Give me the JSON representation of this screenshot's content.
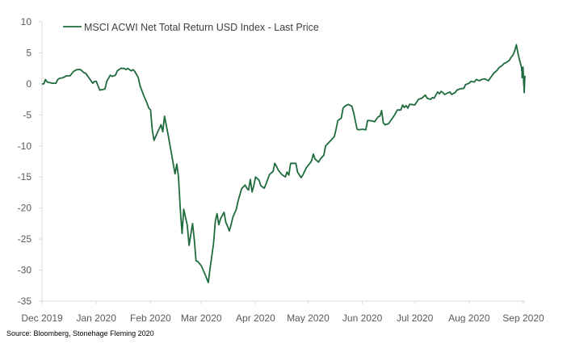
{
  "chart_data": {
    "type": "line",
    "title": "",
    "xlabel": "",
    "ylabel": "",
    "ylim": [
      -35,
      10
    ],
    "yticks": [
      10,
      5,
      0,
      -5,
      -10,
      -15,
      -20,
      -25,
      -30,
      -35
    ],
    "xlim": [
      "2019-12-01",
      "2020-09-01"
    ],
    "xticks": [
      {
        "date": "2019-12-01",
        "label": "Dec 2019"
      },
      {
        "date": "2020-01-01",
        "label": "Jan 2020"
      },
      {
        "date": "2020-02-01",
        "label": "Feb 2020"
      },
      {
        "date": "2020-03-01",
        "label": "Mar 2020"
      },
      {
        "date": "2020-04-01",
        "label": "Apr 2020"
      },
      {
        "date": "2020-05-01",
        "label": "May 2020"
      },
      {
        "date": "2020-06-01",
        "label": "Jun 2020"
      },
      {
        "date": "2020-07-01",
        "label": "Jul 2020"
      },
      {
        "date": "2020-08-01",
        "label": "Aug 2020"
      },
      {
        "date": "2020-09-01",
        "label": "Sep 2020"
      }
    ],
    "grid": false,
    "legend": {
      "position": "top-left",
      "entries": [
        "MSCI ACWI Net Total Return USD Index - Last Price"
      ]
    },
    "series": [
      {
        "name": "MSCI ACWI Net Total Return USD Index - Last Price",
        "color": "#1e6b3c",
        "points": [
          [
            "2019-12-01",
            0.0
          ],
          [
            "2019-12-02",
            0.0
          ],
          [
            "2019-12-03",
            0.7
          ],
          [
            "2019-12-04",
            0.3
          ],
          [
            "2019-12-07",
            0.1
          ],
          [
            "2019-12-09",
            0.1
          ],
          [
            "2019-12-10",
            0.7
          ],
          [
            "2019-12-11",
            0.9
          ],
          [
            "2019-12-13",
            1.0
          ],
          [
            "2019-12-15",
            1.3
          ],
          [
            "2019-12-17",
            1.3
          ],
          [
            "2019-12-19",
            2.0
          ],
          [
            "2019-12-21",
            2.3
          ],
          [
            "2019-12-23",
            2.3
          ],
          [
            "2019-12-25",
            1.8
          ],
          [
            "2019-12-26",
            1.7
          ],
          [
            "2019-12-28",
            0.9
          ],
          [
            "2019-12-30",
            0.1
          ],
          [
            "2019-12-31",
            0.4
          ],
          [
            "2020-01-01",
            0.4
          ],
          [
            "2020-01-02",
            -0.3
          ],
          [
            "2020-01-03",
            -1.0
          ],
          [
            "2020-01-05",
            -0.9
          ],
          [
            "2020-01-06",
            -0.8
          ],
          [
            "2020-01-07",
            0.4
          ],
          [
            "2020-01-09",
            1.4
          ],
          [
            "2020-01-10",
            1.2
          ],
          [
            "2020-01-12",
            1.4
          ],
          [
            "2020-01-13",
            2.1
          ],
          [
            "2020-01-15",
            2.5
          ],
          [
            "2020-01-17",
            2.5
          ],
          [
            "2020-01-18",
            2.3
          ],
          [
            "2020-01-19",
            2.5
          ],
          [
            "2020-01-21",
            2.1
          ],
          [
            "2020-01-22",
            2.3
          ],
          [
            "2020-01-23",
            2.0
          ],
          [
            "2020-01-25",
            1.0
          ],
          [
            "2020-01-26",
            -0.3
          ],
          [
            "2020-01-28",
            -1.8
          ],
          [
            "2020-01-30",
            -3.1
          ],
          [
            "2020-01-31",
            -3.9
          ],
          [
            "2020-02-01",
            -4.2
          ],
          [
            "2020-02-02",
            -7.4
          ],
          [
            "2020-02-03",
            -9.1
          ],
          [
            "2020-02-05",
            -7.8
          ],
          [
            "2020-02-07",
            -6.6
          ],
          [
            "2020-02-08",
            -7.7
          ],
          [
            "2020-02-09",
            -5.2
          ],
          [
            "2020-02-11",
            -8.1
          ],
          [
            "2020-02-13",
            -11.3
          ],
          [
            "2020-02-15",
            -14.5
          ],
          [
            "2020-02-16",
            -12.9
          ],
          [
            "2020-02-17",
            -15.0
          ],
          [
            "2020-02-18",
            -20.1
          ],
          [
            "2020-02-19",
            -24.1
          ],
          [
            "2020-02-20",
            -20.2
          ],
          [
            "2020-02-22",
            -22.8
          ],
          [
            "2020-02-23",
            -26.0
          ],
          [
            "2020-02-25",
            -22.5
          ],
          [
            "2020-02-26",
            -25.1
          ],
          [
            "2020-02-27",
            -28.5
          ],
          [
            "2020-02-28",
            -28.6
          ],
          [
            "2020-03-01",
            -29.3
          ],
          [
            "2020-03-03",
            -30.6
          ],
          [
            "2020-03-05",
            -32.0
          ],
          [
            "2020-03-06",
            -29.7
          ],
          [
            "2020-03-08",
            -25.7
          ],
          [
            "2020-03-09",
            -22.1
          ],
          [
            "2020-03-10",
            -20.9
          ],
          [
            "2020-03-11",
            -22.7
          ],
          [
            "2020-03-12",
            -21.7
          ],
          [
            "2020-03-14",
            -20.7
          ],
          [
            "2020-03-15",
            -22.3
          ],
          [
            "2020-03-16",
            -22.9
          ],
          [
            "2020-03-17",
            -23.7
          ],
          [
            "2020-03-18",
            -22.7
          ],
          [
            "2020-03-19",
            -21.5
          ],
          [
            "2020-03-21",
            -20.2
          ],
          [
            "2020-03-22",
            -18.9
          ],
          [
            "2020-03-24",
            -16.9
          ],
          [
            "2020-03-26",
            -16.3
          ],
          [
            "2020-03-27",
            -16.8
          ],
          [
            "2020-03-28",
            -17.1
          ],
          [
            "2020-03-29",
            -15.4
          ],
          [
            "2020-03-30",
            -17.4
          ],
          [
            "2020-03-31",
            -16.4
          ],
          [
            "2020-04-01",
            -15.0
          ],
          [
            "2020-04-03",
            -15.5
          ],
          [
            "2020-04-04",
            -16.4
          ],
          [
            "2020-04-06",
            -16.8
          ],
          [
            "2020-04-07",
            -16.1
          ],
          [
            "2020-04-09",
            -14.6
          ],
          [
            "2020-04-11",
            -14.1
          ],
          [
            "2020-04-12",
            -12.8
          ],
          [
            "2020-04-13",
            -13.3
          ],
          [
            "2020-04-14",
            -13.9
          ],
          [
            "2020-04-16",
            -14.6
          ],
          [
            "2020-04-18",
            -15.0
          ],
          [
            "2020-04-19",
            -14.2
          ],
          [
            "2020-04-20",
            -14.7
          ],
          [
            "2020-04-21",
            -12.8
          ],
          [
            "2020-04-23",
            -12.8
          ],
          [
            "2020-04-24",
            -12.8
          ],
          [
            "2020-04-25",
            -14.2
          ],
          [
            "2020-04-27",
            -15.1
          ],
          [
            "2020-04-28",
            -14.7
          ],
          [
            "2020-04-30",
            -13.5
          ],
          [
            "2020-05-02",
            -12.8
          ],
          [
            "2020-05-03",
            -12.4
          ],
          [
            "2020-05-04",
            -11.3
          ],
          [
            "2020-05-05",
            -12.1
          ],
          [
            "2020-05-07",
            -12.6
          ],
          [
            "2020-05-08",
            -12.1
          ],
          [
            "2020-05-10",
            -11.5
          ],
          [
            "2020-05-11",
            -10.0
          ],
          [
            "2020-05-13",
            -9.4
          ],
          [
            "2020-05-14",
            -9.1
          ],
          [
            "2020-05-16",
            -8.5
          ],
          [
            "2020-05-17",
            -7.3
          ],
          [
            "2020-05-18",
            -5.9
          ],
          [
            "2020-05-20",
            -5.5
          ],
          [
            "2020-05-21",
            -3.9
          ],
          [
            "2020-05-22",
            -3.6
          ],
          [
            "2020-05-24",
            -3.3
          ],
          [
            "2020-05-26",
            -3.6
          ],
          [
            "2020-05-27",
            -4.6
          ],
          [
            "2020-05-29",
            -7.3
          ],
          [
            "2020-05-30",
            -7.4
          ],
          [
            "2020-06-01",
            -7.3
          ],
          [
            "2020-06-03",
            -7.4
          ],
          [
            "2020-06-04",
            -5.9
          ],
          [
            "2020-06-05",
            -5.9
          ],
          [
            "2020-06-07",
            -6.0
          ],
          [
            "2020-06-08",
            -6.1
          ],
          [
            "2020-06-10",
            -5.3
          ],
          [
            "2020-06-11",
            -5.2
          ],
          [
            "2020-06-12",
            -4.3
          ],
          [
            "2020-06-13",
            -6.3
          ],
          [
            "2020-06-14",
            -6.6
          ],
          [
            "2020-06-16",
            -6.4
          ],
          [
            "2020-06-18",
            -5.6
          ],
          [
            "2020-06-19",
            -5.2
          ],
          [
            "2020-06-21",
            -4.2
          ],
          [
            "2020-06-23",
            -4.2
          ],
          [
            "2020-06-24",
            -3.4
          ],
          [
            "2020-06-25",
            -3.8
          ],
          [
            "2020-06-26",
            -3.5
          ],
          [
            "2020-06-27",
            -3.9
          ],
          [
            "2020-06-28",
            -3.3
          ],
          [
            "2020-06-29",
            -3.3
          ],
          [
            "2020-07-01",
            -3.4
          ],
          [
            "2020-07-03",
            -2.5
          ],
          [
            "2020-07-05",
            -2.3
          ],
          [
            "2020-07-07",
            -1.8
          ],
          [
            "2020-07-08",
            -2.3
          ],
          [
            "2020-07-10",
            -2.5
          ],
          [
            "2020-07-11",
            -2.2
          ],
          [
            "2020-07-12",
            -2.3
          ],
          [
            "2020-07-14",
            -1.3
          ],
          [
            "2020-07-15",
            -1.6
          ],
          [
            "2020-07-16",
            -1.2
          ],
          [
            "2020-07-17",
            -1.4
          ],
          [
            "2020-07-18",
            -1.7
          ],
          [
            "2020-07-21",
            -1.3
          ],
          [
            "2020-07-22",
            -1.7
          ],
          [
            "2020-07-24",
            -1.4
          ],
          [
            "2020-07-25",
            -1.0
          ],
          [
            "2020-07-27",
            -0.8
          ],
          [
            "2020-07-29",
            -0.7
          ],
          [
            "2020-07-30",
            -0.1
          ],
          [
            "2020-08-01",
            0.1
          ],
          [
            "2020-08-02",
            0.4
          ],
          [
            "2020-08-04",
            0.3
          ],
          [
            "2020-08-05",
            0.7
          ],
          [
            "2020-08-07",
            0.5
          ],
          [
            "2020-08-08",
            0.7
          ],
          [
            "2020-08-10",
            0.8
          ],
          [
            "2020-08-12",
            0.5
          ],
          [
            "2020-08-15",
            1.7
          ],
          [
            "2020-08-17",
            2.2
          ],
          [
            "2020-08-18",
            2.6
          ],
          [
            "2020-08-20",
            3.0
          ],
          [
            "2020-08-21",
            3.3
          ],
          [
            "2020-08-22",
            3.4
          ],
          [
            "2020-08-24",
            3.8
          ],
          [
            "2020-08-25",
            4.3
          ],
          [
            "2020-08-26",
            4.6
          ],
          [
            "2020-08-27",
            5.3
          ],
          [
            "2020-08-28",
            6.3
          ],
          [
            "2020-08-29",
            4.8
          ],
          [
            "2020-08-30",
            3.6
          ],
          [
            "2020-08-31",
            2.6
          ]
        ]
      }
    ],
    "line_end_points": [
      [
        "2020-08-28",
        6.3
      ],
      [
        "2020-08-30",
        3.6
      ],
      [
        "2020-09-01",
        2.1
      ],
      [
        "2020-09-02",
        2.1
      ],
      [
        "2020-09-03",
        2.2
      ],
      [
        "2020-09-04",
        1.0
      ],
      [
        "2020-09-05",
        1.8
      ],
      [
        "2020-09-06",
        1.3
      ],
      [
        "2020-09-08",
        1.8
      ],
      [
        "2020-09-10",
        2.3
      ],
      [
        "2020-09-12",
        2.7
      ],
      [
        "2020-09-13",
        2.3
      ],
      [
        "2020-09-15",
        1.4
      ],
      [
        "2020-09-17",
        0.4
      ],
      [
        "2020-09-19",
        -0.4
      ],
      [
        "2020-09-20",
        -0.1
      ],
      [
        "2020-09-21",
        -0.7
      ],
      [
        "2020-09-22",
        -1.4
      ],
      [
        "2020-09-23",
        -1.0
      ],
      [
        "2020-09-25",
        -0.3
      ],
      [
        "2020-09-27",
        0.9
      ],
      [
        "2020-09-28",
        0.9
      ],
      [
        "2020-09-29",
        1.3
      ]
    ]
  },
  "source_note": "Source: Bloomberg, Stonehage Fleming 2020"
}
